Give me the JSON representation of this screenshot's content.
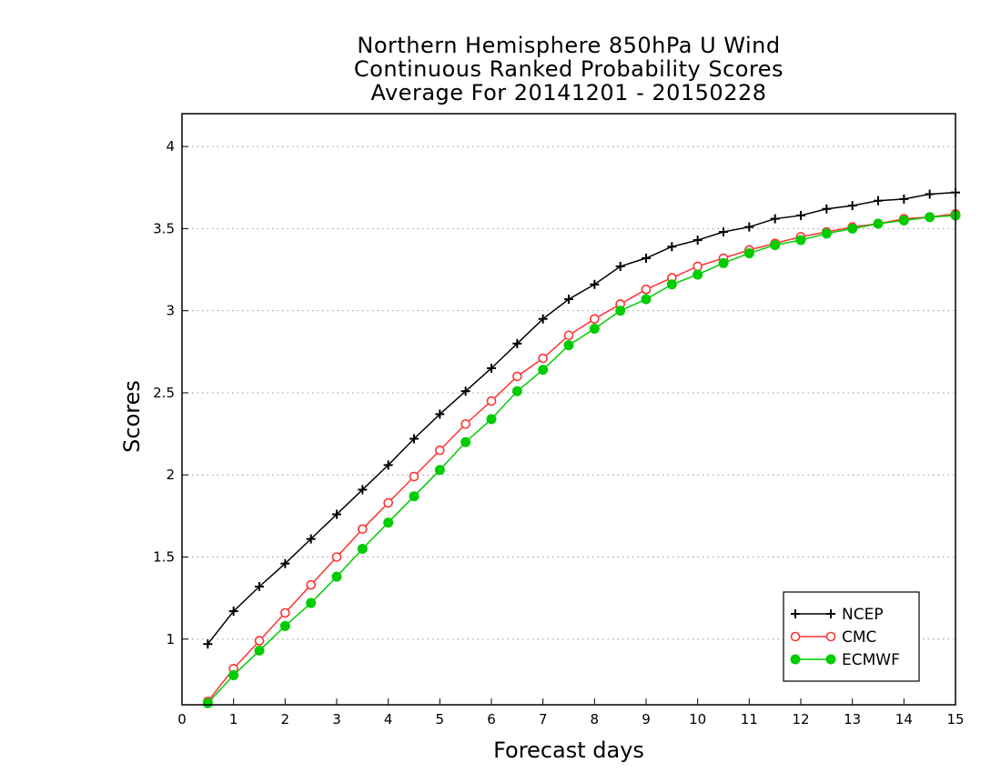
{
  "chart_data": {
    "type": "line",
    "title_lines": [
      "Northern Hemisphere 850hPa U Wind",
      "Continuous Ranked Probability Scores",
      "Average For 20141201 - 20150228"
    ],
    "xlabel": "Forecast days",
    "ylabel": "Scores",
    "xlim": [
      0,
      15
    ],
    "ylim": [
      0.6,
      4.2
    ],
    "x_ticks": [
      0,
      1,
      2,
      3,
      4,
      5,
      6,
      7,
      8,
      9,
      10,
      11,
      12,
      13,
      14,
      15
    ],
    "y_ticks": [
      1,
      1.5,
      2,
      2.5,
      3,
      3.5,
      4
    ],
    "y_tick_labels": [
      "1",
      "1.5",
      "2",
      "2.5",
      "3",
      "3.5",
      "4"
    ],
    "grid": "horizontal dotted",
    "legend_position": "bottom-right",
    "x": [
      0.5,
      1,
      1.5,
      2,
      2.5,
      3,
      3.5,
      4,
      4.5,
      5,
      5.5,
      6,
      6.5,
      7,
      7.5,
      8,
      8.5,
      9,
      9.5,
      10,
      10.5,
      11,
      11.5,
      12,
      12.5,
      13,
      13.5,
      14,
      14.5,
      15
    ],
    "series": [
      {
        "name": "NCEP",
        "color": "#000000",
        "marker": "plus",
        "values": [
          0.97,
          1.17,
          1.32,
          1.46,
          1.61,
          1.76,
          1.91,
          2.06,
          2.22,
          2.37,
          2.51,
          2.65,
          2.8,
          2.95,
          3.07,
          3.16,
          3.27,
          3.32,
          3.39,
          3.43,
          3.48,
          3.51,
          3.56,
          3.58,
          3.62,
          3.64,
          3.67,
          3.68,
          3.71,
          3.72
        ]
      },
      {
        "name": "CMC",
        "color": "#ff3333",
        "marker": "open-circle",
        "values": [
          0.62,
          0.82,
          0.99,
          1.16,
          1.33,
          1.5,
          1.67,
          1.83,
          1.99,
          2.15,
          2.31,
          2.45,
          2.6,
          2.71,
          2.85,
          2.95,
          3.04,
          3.13,
          3.2,
          3.27,
          3.32,
          3.37,
          3.41,
          3.45,
          3.48,
          3.51,
          3.53,
          3.56,
          3.57,
          3.59
        ]
      },
      {
        "name": "ECMWF",
        "color": "#00cc00",
        "marker": "filled-circle",
        "values": [
          0.61,
          0.78,
          0.93,
          1.08,
          1.22,
          1.38,
          1.55,
          1.71,
          1.87,
          2.03,
          2.2,
          2.34,
          2.51,
          2.64,
          2.79,
          2.89,
          3.0,
          3.07,
          3.16,
          3.22,
          3.29,
          3.35,
          3.4,
          3.43,
          3.47,
          3.5,
          3.53,
          3.55,
          3.57,
          3.58
        ]
      }
    ]
  }
}
